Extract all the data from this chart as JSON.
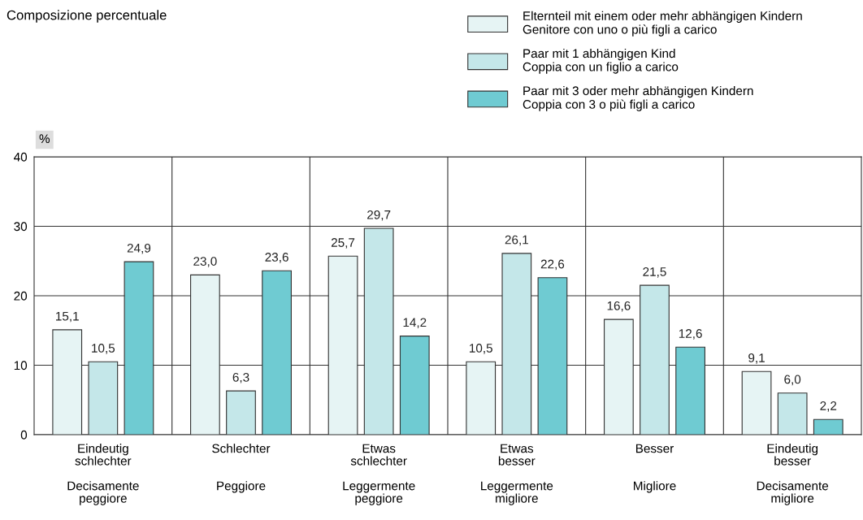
{
  "chart_data": {
    "type": "bar",
    "title": "Composizione percentuale",
    "ylabel": "%",
    "categories": [
      "Eindeutig\nschlechter\n\nDecisamente\npeggiore",
      "Schlechter\n\n\nPeggiore",
      "Etwas\nschlechter\n\nLeggermente\npeggiore",
      "Etwas\nbesser\n\nLeggermente\nmigliore",
      "Besser\n\n\nMigliore",
      "Eindeutig\nbesser\n\nDecisamente\nmigliore"
    ],
    "series": [
      {
        "name": "Elternteil mit einem oder mehr abhängigen Kindern\nGenitore con uno o più figli a carico",
        "color": "#e6f4f4",
        "values": [
          15.1,
          23.0,
          25.7,
          10.5,
          16.6,
          9.1
        ],
        "value_labels": [
          "15,1",
          "23,0",
          "25,7",
          "10,5",
          "16,6",
          "9,1"
        ]
      },
      {
        "name": "Paar mit 1 abhängigen Kind\nCoppia con un figlio a carico",
        "color": "#c4e7e9",
        "values": [
          10.5,
          6.3,
          29.7,
          26.1,
          21.5,
          6.0
        ],
        "value_labels": [
          "10,5",
          "6,3",
          "29,7",
          "26,1",
          "21,5",
          "6,0"
        ]
      },
      {
        "name": "Paar mit 3 oder mehr abhängigen Kindern\nCoppia con 3 o più figli a carico",
        "color": "#6fcbd2",
        "values": [
          24.9,
          23.6,
          14.2,
          22.6,
          12.6,
          2.2
        ],
        "value_labels": [
          "24,9",
          "23,6",
          "14,2",
          "22,6",
          "12,6",
          "2,2"
        ]
      }
    ],
    "ylim": [
      0,
      40
    ],
    "yticks": [
      0,
      10,
      20,
      30,
      40
    ],
    "grid": true,
    "legend": "top right"
  }
}
